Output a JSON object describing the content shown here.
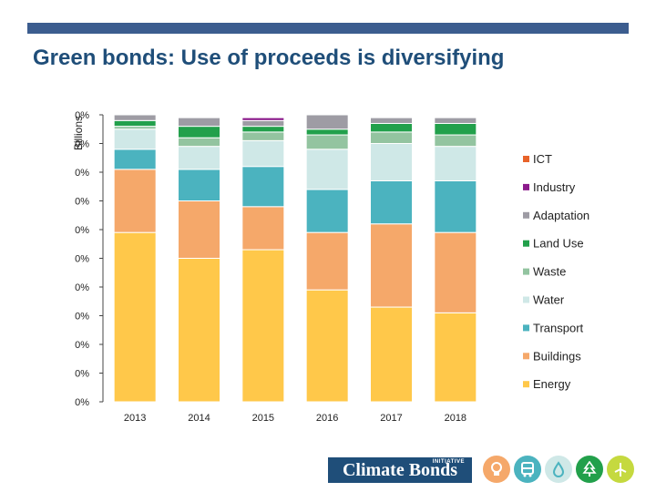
{
  "title": "Green bonds: Use of proceeds is diversifying",
  "brand": {
    "name": "Climate Bonds",
    "tagline": "INITIATIVE"
  },
  "colors": {
    "bar": "#3c5d8f",
    "title": "#1f4e79",
    "logo_bg": "#1f4e79"
  },
  "icons": [
    "energy-bulb-icon",
    "bus-icon",
    "water-drop-icon",
    "tree-icon",
    "wind-icon"
  ],
  "chart_data": {
    "type": "bar",
    "stacked": true,
    "normalized": true,
    "title": "Green bonds: Use of proceeds is diversifying",
    "xlabel": "",
    "ylabel": "Billions",
    "ylim": [
      0,
      100
    ],
    "ytick_labels": [
      "0%",
      "0%",
      "0%",
      "0%",
      "0%",
      "0%",
      "0%",
      "0%",
      "0%",
      "0%",
      "0%"
    ],
    "categories": [
      "2013",
      "2014",
      "2015",
      "2016",
      "2017",
      "2018"
    ],
    "series": [
      {
        "name": "Energy",
        "color": "#ffc84a",
        "values": [
          59,
          50,
          53,
          39,
          33,
          31
        ]
      },
      {
        "name": "Buildings",
        "color": "#f5a86a",
        "values": [
          22,
          20,
          15,
          20,
          29,
          28
        ]
      },
      {
        "name": "Transport",
        "color": "#4bb3bf",
        "values": [
          7,
          11,
          14,
          15,
          15,
          18
        ]
      },
      {
        "name": "Water",
        "color": "#cfe8e7",
        "values": [
          7,
          8,
          9,
          14,
          13,
          12
        ]
      },
      {
        "name": "Waste",
        "color": "#93c4a0",
        "values": [
          1,
          3,
          3,
          5,
          4,
          4
        ]
      },
      {
        "name": "Land Use",
        "color": "#22a04b",
        "values": [
          2,
          4,
          2,
          2,
          3,
          4
        ]
      },
      {
        "name": "Adaptation",
        "color": "#9e9ca4",
        "values": [
          2,
          3,
          2,
          5,
          2,
          2
        ]
      },
      {
        "name": "Industry",
        "color": "#8b1a8b",
        "values": [
          0,
          0,
          1,
          0,
          0,
          0
        ]
      },
      {
        "name": "ICT",
        "color": "#e8632a",
        "values": [
          0,
          0,
          0,
          0,
          0,
          0
        ]
      }
    ],
    "legend_order": [
      "ICT",
      "Industry",
      "Adaptation",
      "Land Use",
      "Waste",
      "Water",
      "Transport",
      "Buildings",
      "Energy"
    ],
    "legend_position": "right"
  }
}
